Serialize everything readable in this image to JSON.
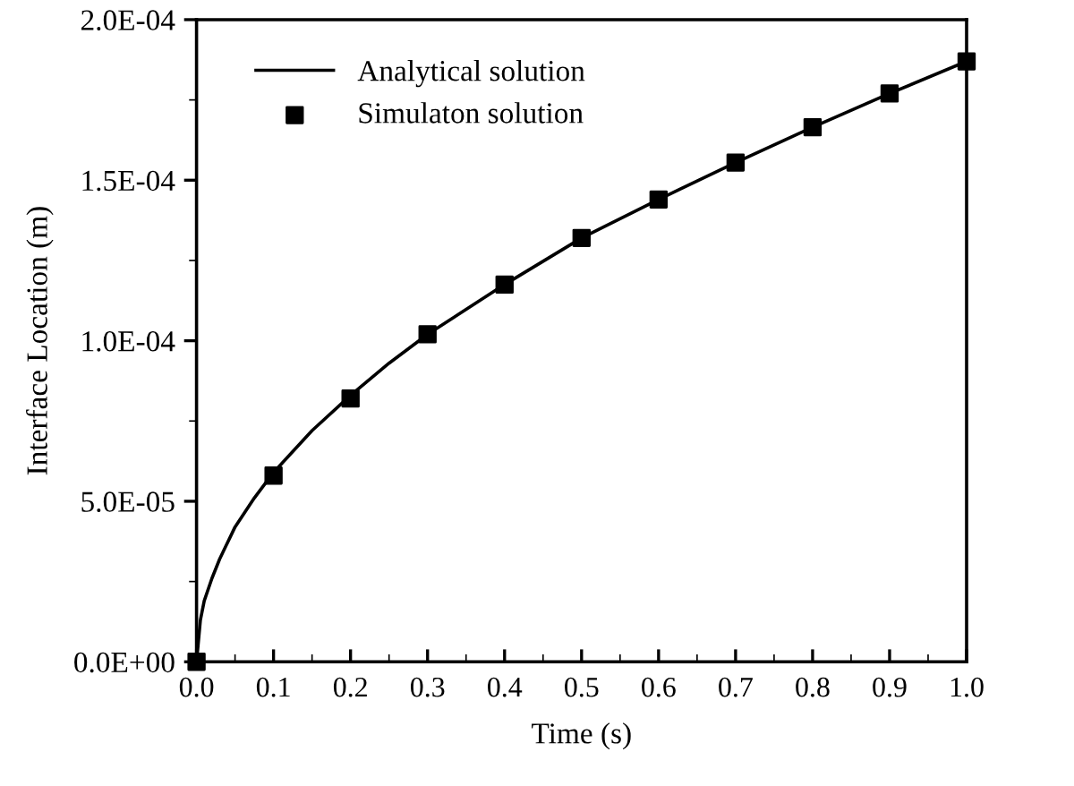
{
  "chart_data": {
    "type": "line",
    "xlabel": "Time (s)",
    "ylabel": "Interface Location (m)",
    "xlim": [
      0,
      1
    ],
    "ylim": [
      0,
      0.0002
    ],
    "xticks": [
      {
        "value": 0,
        "label": "0.0"
      },
      {
        "value": 0.1,
        "label": "0.1"
      },
      {
        "value": 0.2,
        "label": "0.2"
      },
      {
        "value": 0.3,
        "label": "0.3"
      },
      {
        "value": 0.4,
        "label": "0.4"
      },
      {
        "value": 0.5,
        "label": "0.5"
      },
      {
        "value": 0.6,
        "label": "0.6"
      },
      {
        "value": 0.7,
        "label": "0.7"
      },
      {
        "value": 0.8,
        "label": "0.8"
      },
      {
        "value": 0.9,
        "label": "0.9"
      },
      {
        "value": 1,
        "label": "1.0"
      }
    ],
    "yticks": [
      {
        "value": 0,
        "label": "0.0E+00"
      },
      {
        "value": 5e-05,
        "label": "5.0E-05"
      },
      {
        "value": 0.0001,
        "label": "1.0E-04"
      },
      {
        "value": 0.00015,
        "label": "1.5E-04"
      },
      {
        "value": 0.0002,
        "label": "2.0E-04"
      }
    ],
    "legend": "top left",
    "grid": false,
    "series": [
      {
        "name": "Analytical solution",
        "color": "#000000",
        "marker": "none",
        "line_style": "solid",
        "x": [
          0,
          0.005,
          0.01,
          0.02,
          0.03,
          0.05,
          0.075,
          0.1,
          0.15,
          0.2,
          0.25,
          0.3,
          0.4,
          0.5,
          0.6,
          0.7,
          0.8,
          0.9,
          1.0
        ],
        "values": [
          0,
          1.3e-05,
          1.9e-05,
          2.6e-05,
          3.2e-05,
          4.2e-05,
          5.1e-05,
          5.9e-05,
          7.2e-05,
          8.3e-05,
          9.3e-05,
          0.000102,
          0.0001175,
          0.000132,
          0.000144,
          0.0001555,
          0.0001665,
          0.000177,
          0.000187
        ]
      },
      {
        "name": "Simulaton solution",
        "type": "scatter",
        "color": "#000000",
        "marker": "square",
        "x": [
          0,
          0.1,
          0.2,
          0.3,
          0.4,
          0.5,
          0.6,
          0.7,
          0.8,
          0.9,
          1.0
        ],
        "values": [
          0,
          5.8e-05,
          8.2e-05,
          0.000102,
          0.0001175,
          0.000132,
          0.000144,
          0.0001555,
          0.0001665,
          0.000177,
          0.000187
        ]
      }
    ]
  }
}
